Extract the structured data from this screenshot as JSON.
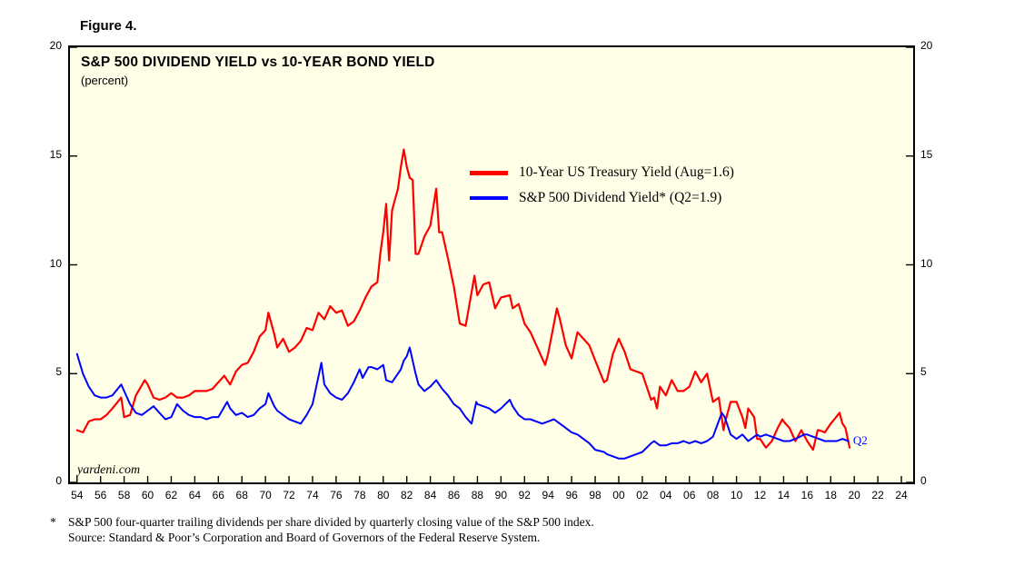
{
  "figure_label": "Figure 4.",
  "chart_data": {
    "type": "line",
    "title": "S&P 500 DIVIDEND YIELD vs 10-YEAR BOND YIELD",
    "subtitle": "(percent)",
    "watermark": "yardeni.com",
    "plot_bg": "#FFFFE8",
    "axis_color": "#000000",
    "grid": false,
    "legend_position": "upper-middle-inside",
    "ylim": [
      0,
      20
    ],
    "xlim": [
      1953.4,
      2025.0
    ],
    "y_ticks": [
      0,
      5,
      10,
      15,
      20
    ],
    "x_tick_years": [
      1954,
      1956,
      1958,
      1960,
      1962,
      1964,
      1966,
      1968,
      1970,
      1972,
      1974,
      1976,
      1978,
      1980,
      1982,
      1984,
      1986,
      1988,
      1990,
      1992,
      1994,
      1996,
      1998,
      2000,
      2002,
      2004,
      2006,
      2008,
      2010,
      2012,
      2014,
      2016,
      2018,
      2020,
      2022,
      2024
    ],
    "x_tick_labels": [
      "54",
      "56",
      "58",
      "60",
      "62",
      "64",
      "66",
      "68",
      "70",
      "72",
      "74",
      "76",
      "78",
      "80",
      "82",
      "84",
      "86",
      "88",
      "90",
      "92",
      "94",
      "96",
      "98",
      "00",
      "02",
      "04",
      "06",
      "08",
      "10",
      "12",
      "14",
      "16",
      "18",
      "20",
      "22",
      "24"
    ],
    "annotation": {
      "text": "Q2",
      "x": 2019.9,
      "y": 1.9,
      "color": "#0000FF"
    },
    "legend": [
      {
        "label": "10-Year US Treasury Yield (Aug=1.6)",
        "color": "#FF0000"
      },
      {
        "label": "S&P 500 Dividend Yield* (Q2=1.9)",
        "color": "#0000FF"
      }
    ],
    "series": [
      {
        "name": "10-Year US Treasury Yield",
        "color": "#FF0000",
        "width": 2.2,
        "points": [
          [
            1954.0,
            2.4
          ],
          [
            1954.5,
            2.3
          ],
          [
            1955.0,
            2.8
          ],
          [
            1955.5,
            2.9
          ],
          [
            1956.0,
            2.9
          ],
          [
            1956.5,
            3.1
          ],
          [
            1957.0,
            3.4
          ],
          [
            1957.75,
            3.9
          ],
          [
            1958.0,
            3.0
          ],
          [
            1958.5,
            3.1
          ],
          [
            1959.0,
            4.0
          ],
          [
            1959.75,
            4.7
          ],
          [
            1960.0,
            4.5
          ],
          [
            1960.5,
            3.9
          ],
          [
            1961.0,
            3.8
          ],
          [
            1961.5,
            3.9
          ],
          [
            1962.0,
            4.1
          ],
          [
            1962.5,
            3.9
          ],
          [
            1963.0,
            3.9
          ],
          [
            1963.5,
            4.0
          ],
          [
            1964.0,
            4.2
          ],
          [
            1964.5,
            4.2
          ],
          [
            1965.0,
            4.2
          ],
          [
            1965.5,
            4.3
          ],
          [
            1966.0,
            4.6
          ],
          [
            1966.5,
            4.9
          ],
          [
            1967.0,
            4.5
          ],
          [
            1967.5,
            5.1
          ],
          [
            1968.0,
            5.4
          ],
          [
            1968.5,
            5.5
          ],
          [
            1969.0,
            6.0
          ],
          [
            1969.5,
            6.7
          ],
          [
            1970.0,
            7.0
          ],
          [
            1970.25,
            7.8
          ],
          [
            1970.75,
            6.8
          ],
          [
            1971.0,
            6.2
          ],
          [
            1971.5,
            6.6
          ],
          [
            1972.0,
            6.0
          ],
          [
            1972.5,
            6.2
          ],
          [
            1973.0,
            6.5
          ],
          [
            1973.5,
            7.1
          ],
          [
            1974.0,
            7.0
          ],
          [
            1974.5,
            7.8
          ],
          [
            1975.0,
            7.5
          ],
          [
            1975.5,
            8.1
          ],
          [
            1976.0,
            7.8
          ],
          [
            1976.5,
            7.9
          ],
          [
            1977.0,
            7.2
          ],
          [
            1977.5,
            7.4
          ],
          [
            1978.0,
            7.9
          ],
          [
            1978.5,
            8.5
          ],
          [
            1979.0,
            9.0
          ],
          [
            1979.5,
            9.2
          ],
          [
            1979.75,
            10.5
          ],
          [
            1980.0,
            11.5
          ],
          [
            1980.25,
            12.8
          ],
          [
            1980.5,
            10.2
          ],
          [
            1980.75,
            12.5
          ],
          [
            1981.0,
            13.0
          ],
          [
            1981.25,
            13.5
          ],
          [
            1981.5,
            14.5
          ],
          [
            1981.75,
            15.3
          ],
          [
            1982.0,
            14.5
          ],
          [
            1982.25,
            14.0
          ],
          [
            1982.5,
            13.9
          ],
          [
            1982.75,
            10.5
          ],
          [
            1983.0,
            10.5
          ],
          [
            1983.5,
            11.3
          ],
          [
            1984.0,
            11.8
          ],
          [
            1984.5,
            13.5
          ],
          [
            1984.75,
            11.5
          ],
          [
            1985.0,
            11.5
          ],
          [
            1985.5,
            10.3
          ],
          [
            1986.0,
            9.0
          ],
          [
            1986.5,
            7.3
          ],
          [
            1987.0,
            7.2
          ],
          [
            1987.75,
            9.5
          ],
          [
            1988.0,
            8.6
          ],
          [
            1988.5,
            9.1
          ],
          [
            1989.0,
            9.2
          ],
          [
            1989.5,
            8.0
          ],
          [
            1990.0,
            8.5
          ],
          [
            1990.75,
            8.6
          ],
          [
            1991.0,
            8.0
          ],
          [
            1991.5,
            8.2
          ],
          [
            1992.0,
            7.3
          ],
          [
            1992.5,
            6.9
          ],
          [
            1993.0,
            6.3
          ],
          [
            1993.75,
            5.4
          ],
          [
            1994.0,
            5.9
          ],
          [
            1994.75,
            8.0
          ],
          [
            1995.0,
            7.5
          ],
          [
            1995.5,
            6.3
          ],
          [
            1996.0,
            5.7
          ],
          [
            1996.5,
            6.9
          ],
          [
            1997.0,
            6.6
          ],
          [
            1997.5,
            6.3
          ],
          [
            1998.0,
            5.6
          ],
          [
            1998.75,
            4.6
          ],
          [
            1999.0,
            4.7
          ],
          [
            1999.5,
            5.9
          ],
          [
            2000.0,
            6.6
          ],
          [
            2000.5,
            6.0
          ],
          [
            2001.0,
            5.2
          ],
          [
            2001.5,
            5.1
          ],
          [
            2002.0,
            5.0
          ],
          [
            2002.75,
            3.8
          ],
          [
            2003.0,
            3.9
          ],
          [
            2003.25,
            3.4
          ],
          [
            2003.5,
            4.4
          ],
          [
            2004.0,
            4.0
          ],
          [
            2004.5,
            4.7
          ],
          [
            2005.0,
            4.2
          ],
          [
            2005.5,
            4.2
          ],
          [
            2006.0,
            4.4
          ],
          [
            2006.5,
            5.1
          ],
          [
            2007.0,
            4.6
          ],
          [
            2007.5,
            5.0
          ],
          [
            2008.0,
            3.7
          ],
          [
            2008.5,
            3.9
          ],
          [
            2008.9,
            2.4
          ],
          [
            2009.0,
            2.7
          ],
          [
            2009.5,
            3.7
          ],
          [
            2010.0,
            3.7
          ],
          [
            2010.5,
            3.0
          ],
          [
            2010.75,
            2.5
          ],
          [
            2011.0,
            3.4
          ],
          [
            2011.5,
            3.0
          ],
          [
            2011.75,
            2.0
          ],
          [
            2012.0,
            2.0
          ],
          [
            2012.5,
            1.6
          ],
          [
            2013.0,
            1.9
          ],
          [
            2013.5,
            2.5
          ],
          [
            2013.9,
            2.9
          ],
          [
            2014.0,
            2.8
          ],
          [
            2014.5,
            2.5
          ],
          [
            2015.0,
            1.9
          ],
          [
            2015.5,
            2.4
          ],
          [
            2016.0,
            1.9
          ],
          [
            2016.5,
            1.5
          ],
          [
            2016.9,
            2.4
          ],
          [
            2017.0,
            2.4
          ],
          [
            2017.5,
            2.3
          ],
          [
            2018.0,
            2.7
          ],
          [
            2018.75,
            3.2
          ],
          [
            2019.0,
            2.7
          ],
          [
            2019.25,
            2.5
          ],
          [
            2019.6,
            1.6
          ]
        ]
      },
      {
        "name": "S&P 500 Dividend Yield",
        "color": "#0000FF",
        "width": 2.0,
        "points": [
          [
            1954.0,
            5.9
          ],
          [
            1954.5,
            5.0
          ],
          [
            1955.0,
            4.4
          ],
          [
            1955.5,
            4.0
          ],
          [
            1956.0,
            3.9
          ],
          [
            1956.5,
            3.9
          ],
          [
            1957.0,
            4.0
          ],
          [
            1957.75,
            4.5
          ],
          [
            1958.0,
            4.2
          ],
          [
            1958.5,
            3.6
          ],
          [
            1959.0,
            3.2
          ],
          [
            1959.5,
            3.1
          ],
          [
            1960.0,
            3.3
          ],
          [
            1960.5,
            3.5
          ],
          [
            1961.0,
            3.2
          ],
          [
            1961.5,
            2.9
          ],
          [
            1962.0,
            3.0
          ],
          [
            1962.5,
            3.6
          ],
          [
            1963.0,
            3.3
          ],
          [
            1963.5,
            3.1
          ],
          [
            1964.0,
            3.0
          ],
          [
            1964.5,
            3.0
          ],
          [
            1965.0,
            2.9
          ],
          [
            1965.5,
            3.0
          ],
          [
            1966.0,
            3.0
          ],
          [
            1966.75,
            3.7
          ],
          [
            1967.0,
            3.4
          ],
          [
            1967.5,
            3.1
          ],
          [
            1968.0,
            3.2
          ],
          [
            1968.5,
            3.0
          ],
          [
            1969.0,
            3.1
          ],
          [
            1969.5,
            3.4
          ],
          [
            1970.0,
            3.6
          ],
          [
            1970.25,
            4.1
          ],
          [
            1970.75,
            3.5
          ],
          [
            1971.0,
            3.3
          ],
          [
            1971.5,
            3.1
          ],
          [
            1972.0,
            2.9
          ],
          [
            1972.5,
            2.8
          ],
          [
            1973.0,
            2.7
          ],
          [
            1973.5,
            3.1
          ],
          [
            1974.0,
            3.6
          ],
          [
            1974.75,
            5.5
          ],
          [
            1975.0,
            4.5
          ],
          [
            1975.5,
            4.1
          ],
          [
            1976.0,
            3.9
          ],
          [
            1976.5,
            3.8
          ],
          [
            1977.0,
            4.1
          ],
          [
            1977.5,
            4.6
          ],
          [
            1978.0,
            5.2
          ],
          [
            1978.25,
            4.8
          ],
          [
            1978.75,
            5.3
          ],
          [
            1979.0,
            5.3
          ],
          [
            1979.5,
            5.2
          ],
          [
            1980.0,
            5.4
          ],
          [
            1980.25,
            4.7
          ],
          [
            1980.75,
            4.6
          ],
          [
            1981.0,
            4.8
          ],
          [
            1981.5,
            5.2
          ],
          [
            1981.75,
            5.6
          ],
          [
            1982.0,
            5.8
          ],
          [
            1982.25,
            6.2
          ],
          [
            1982.75,
            5.0
          ],
          [
            1983.0,
            4.5
          ],
          [
            1983.5,
            4.2
          ],
          [
            1984.0,
            4.4
          ],
          [
            1984.5,
            4.7
          ],
          [
            1985.0,
            4.3
          ],
          [
            1985.5,
            4.0
          ],
          [
            1986.0,
            3.6
          ],
          [
            1986.5,
            3.4
          ],
          [
            1987.0,
            3.0
          ],
          [
            1987.5,
            2.7
          ],
          [
            1987.9,
            3.7
          ],
          [
            1988.0,
            3.6
          ],
          [
            1988.5,
            3.5
          ],
          [
            1989.0,
            3.4
          ],
          [
            1989.5,
            3.2
          ],
          [
            1990.0,
            3.4
          ],
          [
            1990.75,
            3.8
          ],
          [
            1991.0,
            3.5
          ],
          [
            1991.5,
            3.1
          ],
          [
            1992.0,
            2.9
          ],
          [
            1992.5,
            2.9
          ],
          [
            1993.0,
            2.8
          ],
          [
            1993.5,
            2.7
          ],
          [
            1994.0,
            2.8
          ],
          [
            1994.5,
            2.9
          ],
          [
            1995.0,
            2.7
          ],
          [
            1995.5,
            2.5
          ],
          [
            1996.0,
            2.3
          ],
          [
            1996.5,
            2.2
          ],
          [
            1997.0,
            2.0
          ],
          [
            1997.5,
            1.8
          ],
          [
            1998.0,
            1.5
          ],
          [
            1998.75,
            1.4
          ],
          [
            1999.0,
            1.3
          ],
          [
            1999.5,
            1.2
          ],
          [
            2000.0,
            1.1
          ],
          [
            2000.5,
            1.1
          ],
          [
            2001.0,
            1.2
          ],
          [
            2001.5,
            1.3
          ],
          [
            2002.0,
            1.4
          ],
          [
            2002.75,
            1.8
          ],
          [
            2003.0,
            1.9
          ],
          [
            2003.5,
            1.7
          ],
          [
            2004.0,
            1.7
          ],
          [
            2004.5,
            1.8
          ],
          [
            2005.0,
            1.8
          ],
          [
            2005.5,
            1.9
          ],
          [
            2006.0,
            1.8
          ],
          [
            2006.5,
            1.9
          ],
          [
            2007.0,
            1.8
          ],
          [
            2007.5,
            1.9
          ],
          [
            2008.0,
            2.1
          ],
          [
            2008.75,
            3.2
          ],
          [
            2009.0,
            3.0
          ],
          [
            2009.25,
            2.6
          ],
          [
            2009.5,
            2.2
          ],
          [
            2010.0,
            2.0
          ],
          [
            2010.5,
            2.2
          ],
          [
            2011.0,
            1.9
          ],
          [
            2011.75,
            2.2
          ],
          [
            2012.0,
            2.1
          ],
          [
            2012.5,
            2.2
          ],
          [
            2013.0,
            2.1
          ],
          [
            2013.5,
            2.0
          ],
          [
            2014.0,
            1.9
          ],
          [
            2014.5,
            1.9
          ],
          [
            2015.0,
            2.0
          ],
          [
            2015.75,
            2.2
          ],
          [
            2016.0,
            2.2
          ],
          [
            2016.5,
            2.1
          ],
          [
            2017.0,
            2.0
          ],
          [
            2017.5,
            1.9
          ],
          [
            2018.0,
            1.9
          ],
          [
            2018.5,
            1.9
          ],
          [
            2019.0,
            2.0
          ],
          [
            2019.5,
            1.9
          ]
        ]
      }
    ]
  },
  "footnote": {
    "marker": "*",
    "line1": "S&P 500 four-quarter trailing dividends per share divided by quarterly closing value of the S&P 500 index.",
    "line2": "Source: Standard & Poor’s Corporation and Board of Governors of the Federal Reserve System."
  }
}
